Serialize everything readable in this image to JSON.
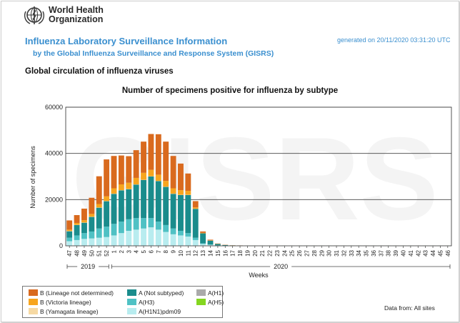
{
  "header": {
    "org_line1": "World Health",
    "org_line2": "Organization",
    "title": "Influenza Laboratory Surveillance Information",
    "subtitle": "by the Global Influenza Surveillance and Response System (GISRS)",
    "generated": "generated on 20/11/2020 03:31:20 UTC",
    "section_title": "Global circulation of influenza viruses"
  },
  "chart_data": {
    "type": "bar",
    "stacked": true,
    "title": "Number of specimens positive for influenza by subtype",
    "xlabel": "Weeks",
    "ylabel": "Number of specimens",
    "watermark": "GISRS",
    "ylim": [
      0,
      60000
    ],
    "yticks": [
      0,
      20000,
      40000,
      60000
    ],
    "grid": true,
    "categories": [
      "47",
      "48",
      "49",
      "50",
      "51",
      "52",
      "1",
      "2",
      "3",
      "4",
      "5",
      "6",
      "7",
      "8",
      "9",
      "10",
      "11",
      "12",
      "13",
      "14",
      "15",
      "16",
      "17",
      "18",
      "19",
      "20",
      "21",
      "22",
      "23",
      "24",
      "25",
      "26",
      "27",
      "28",
      "29",
      "30",
      "31",
      "32",
      "33",
      "34",
      "35",
      "36",
      "37",
      "38",
      "39",
      "40",
      "41",
      "42",
      "43",
      "44",
      "45",
      "46"
    ],
    "year_groups": [
      {
        "label": "2019",
        "start": 0,
        "end": 5
      },
      {
        "label": "2020",
        "start": 6,
        "end": 51
      }
    ],
    "series": [
      {
        "name": "A(H1N1)pdm09",
        "color": "#b8ecef",
        "values": [
          2000,
          2500,
          3000,
          3200,
          3500,
          3800,
          4500,
          5500,
          6500,
          7000,
          7500,
          8000,
          7000,
          6000,
          5000,
          4500,
          4000,
          2500,
          800,
          400,
          150,
          80,
          40,
          30,
          20,
          20,
          20,
          20,
          20,
          20,
          20,
          20,
          20,
          20,
          20,
          20,
          20,
          20,
          20,
          20,
          20,
          20,
          20,
          20,
          20,
          20,
          20,
          20,
          20,
          20,
          20,
          20
        ]
      },
      {
        "name": "A(H3)",
        "color": "#4fc1c4",
        "values": [
          1500,
          2000,
          2500,
          3000,
          4000,
          4500,
          5000,
          5000,
          5000,
          5000,
          4500,
          4000,
          3500,
          3000,
          2500,
          2000,
          1500,
          1000,
          300,
          150,
          50,
          30,
          20,
          10,
          10,
          10,
          10,
          10,
          10,
          10,
          10,
          10,
          10,
          10,
          10,
          10,
          10,
          10,
          10,
          10,
          10,
          10,
          10,
          10,
          10,
          10,
          10,
          10,
          10,
          10,
          10,
          10
        ]
      },
      {
        "name": "A (Not subtyped)",
        "color": "#1a8c8c",
        "values": [
          2800,
          4500,
          4500,
          6300,
          9000,
          11000,
          13000,
          13500,
          13000,
          14500,
          16500,
          18000,
          17500,
          16500,
          15000,
          15500,
          16500,
          12500,
          4300,
          1700,
          600,
          250,
          130,
          100,
          80,
          60,
          60,
          60,
          60,
          60,
          60,
          60,
          60,
          60,
          60,
          60,
          60,
          60,
          60,
          60,
          60,
          60,
          60,
          60,
          60,
          60,
          60,
          60,
          60,
          60,
          60,
          60
        ]
      },
      {
        "name": "A(H1)",
        "color": "#aaaaaa",
        "values": [
          0,
          0,
          0,
          0,
          0,
          0,
          0,
          0,
          0,
          0,
          0,
          0,
          0,
          0,
          0,
          0,
          0,
          0,
          0,
          0,
          0,
          0,
          0,
          0,
          0,
          0,
          0,
          0,
          0,
          0,
          0,
          0,
          0,
          0,
          0,
          0,
          0,
          0,
          0,
          0,
          0,
          0,
          0,
          0,
          0,
          0,
          0,
          0,
          0,
          0,
          0,
          0
        ]
      },
      {
        "name": "A(H5)",
        "color": "#84d620",
        "values": [
          0,
          0,
          0,
          0,
          0,
          0,
          0,
          0,
          0,
          0,
          0,
          0,
          0,
          0,
          0,
          0,
          0,
          0,
          0,
          0,
          0,
          0,
          0,
          0,
          0,
          0,
          0,
          0,
          0,
          0,
          0,
          0,
          0,
          0,
          0,
          0,
          0,
          0,
          0,
          0,
          0,
          0,
          0,
          0,
          0,
          0,
          0,
          0,
          0,
          0,
          0,
          0
        ]
      },
      {
        "name": "B (Yamagata lineage)",
        "color": "#f6d9a3",
        "values": [
          100,
          100,
          100,
          100,
          100,
          100,
          100,
          100,
          100,
          100,
          100,
          100,
          100,
          100,
          100,
          100,
          100,
          50,
          20,
          10,
          5,
          0,
          0,
          0,
          0,
          0,
          0,
          0,
          0,
          0,
          0,
          0,
          0,
          0,
          0,
          0,
          0,
          0,
          0,
          0,
          0,
          0,
          0,
          0,
          0,
          0,
          0,
          0,
          0,
          0,
          0,
          0
        ]
      },
      {
        "name": "B (Victoria lineage)",
        "color": "#f7a51e",
        "values": [
          600,
          800,
          1000,
          1200,
          1500,
          2000,
          2300,
          2500,
          2700,
          2800,
          3000,
          2800,
          2700,
          2500,
          2300,
          2000,
          1700,
          600,
          200,
          100,
          50,
          30,
          20,
          10,
          10,
          10,
          10,
          10,
          10,
          10,
          10,
          10,
          10,
          10,
          10,
          10,
          10,
          10,
          10,
          10,
          10,
          10,
          10,
          10,
          10,
          10,
          10,
          10,
          10,
          10,
          10,
          10
        ]
      },
      {
        "name": "B (Lineage not determined)",
        "color": "#d96a1e",
        "values": [
          4000,
          3400,
          5000,
          7000,
          12000,
          16000,
          14000,
          12500,
          11500,
          12000,
          13500,
          15500,
          17500,
          17000,
          14000,
          11500,
          7500,
          2700,
          600,
          300,
          150,
          80,
          40,
          30,
          20,
          20,
          20,
          20,
          20,
          20,
          20,
          20,
          20,
          20,
          20,
          20,
          20,
          20,
          20,
          20,
          20,
          20,
          20,
          20,
          20,
          20,
          20,
          20,
          20,
          20,
          20,
          20
        ]
      }
    ]
  },
  "legend": {
    "items": [
      {
        "label": "B (Lineage not determined)",
        "color": "#d96a1e"
      },
      {
        "label": "B (Victoria lineage)",
        "color": "#f7a51e"
      },
      {
        "label": "B (Yamagata lineage)",
        "color": "#f6d9a3"
      },
      {
        "label": "A (Not subtyped)",
        "color": "#1a8c8c"
      },
      {
        "label": "A(H3)",
        "color": "#4fc1c4"
      },
      {
        "label": "A(H1N1)pdm09",
        "color": "#b8ecef"
      },
      {
        "label": "A(H1)",
        "color": "#aaaaaa"
      },
      {
        "label": "A(H5)",
        "color": "#84d620"
      }
    ]
  },
  "footer": {
    "data_from": "Data from: All sites"
  }
}
